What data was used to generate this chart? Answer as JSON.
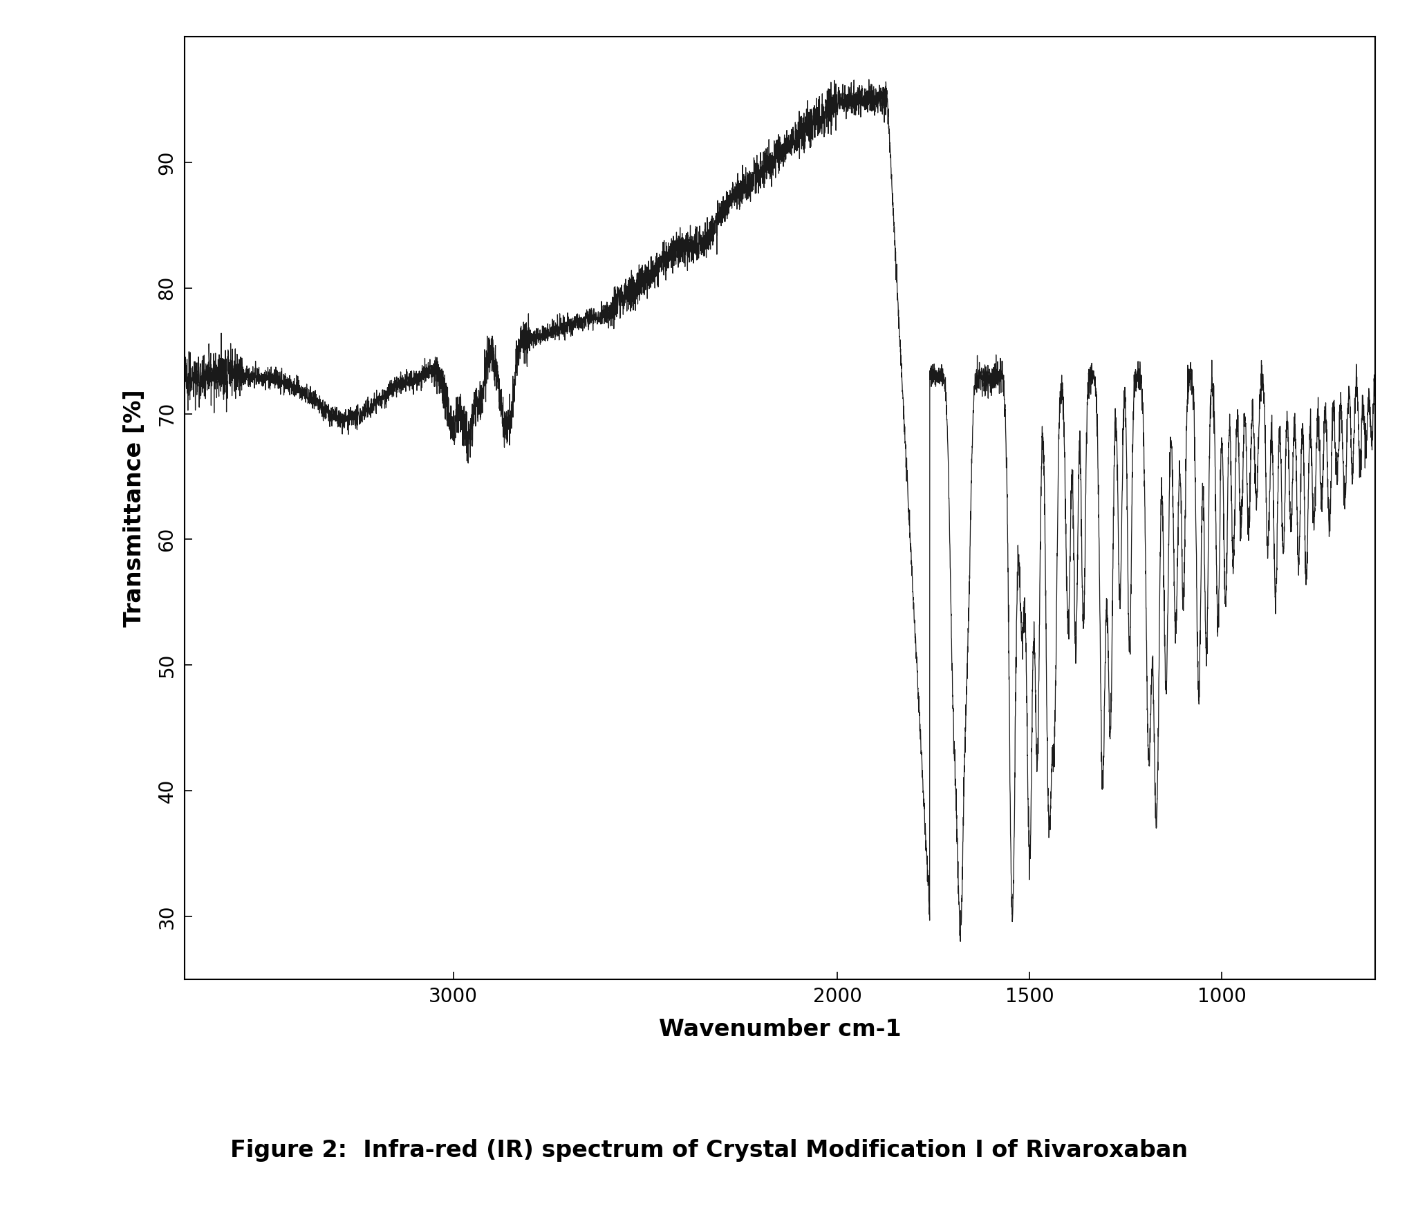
{
  "title": "Figure 2:  Infra-red (IR) spectrum of Crystal Modification I of Rivaroxaban",
  "xlabel": "Wavenumber cm-1",
  "ylabel": "Transmittance [%]",
  "xlim": [
    3700,
    600
  ],
  "ylim": [
    25,
    100
  ],
  "yticks": [
    30,
    40,
    50,
    60,
    70,
    80,
    90
  ],
  "xticks": [
    3000,
    2000,
    1500,
    1000
  ],
  "background_color": "#ffffff",
  "line_color": "#1a1a1a",
  "figure_caption_fontsize": 24,
  "axis_label_fontsize": 24,
  "tick_fontsize": 20
}
